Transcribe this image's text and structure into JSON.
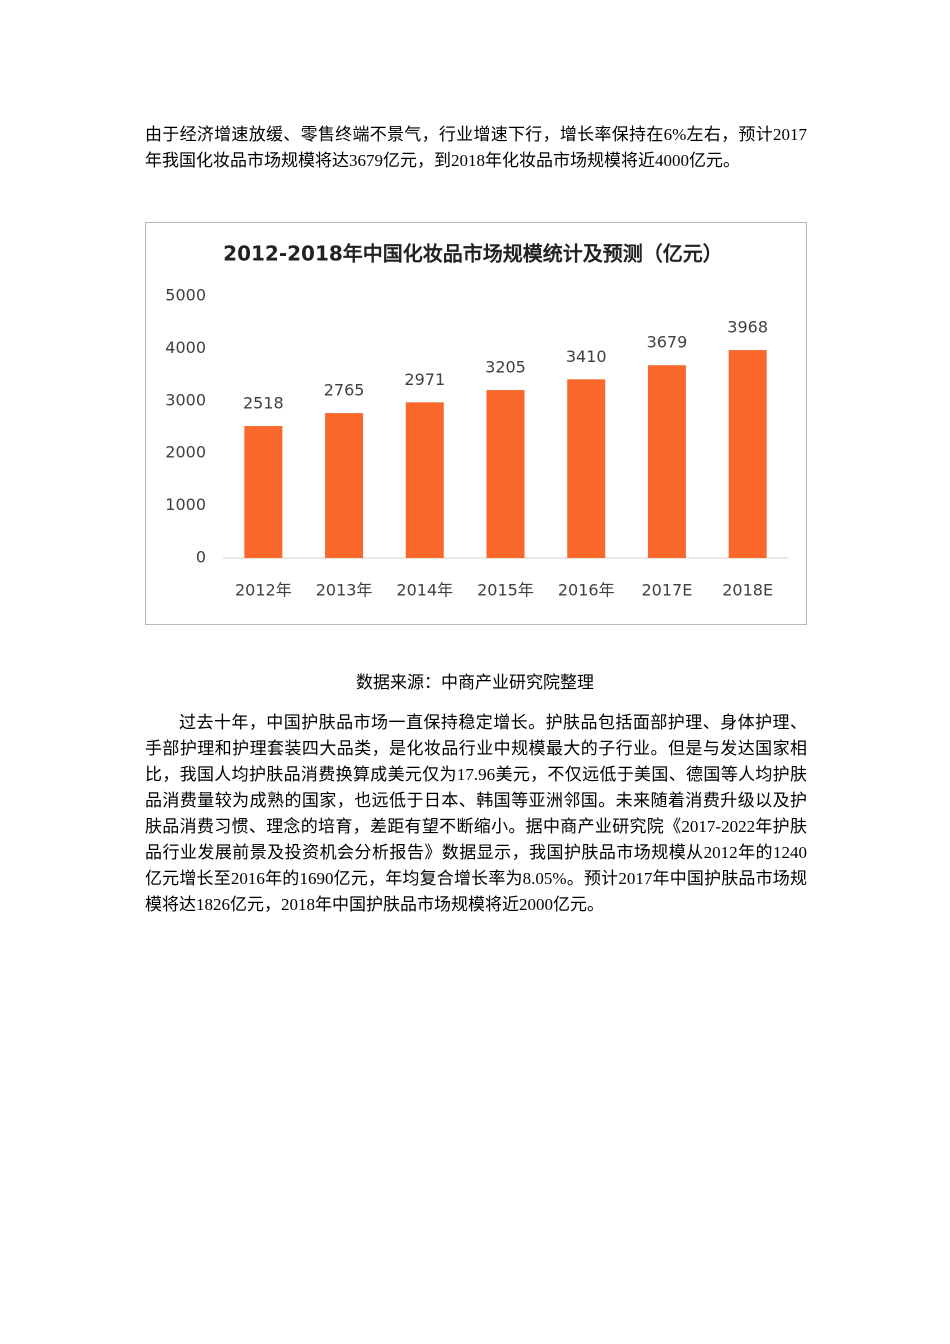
{
  "paragraphs": [
    "由于经济增速放缓、零售终端不景气，行业增速下行，增长率保持在6%左右，预计2017年我国化妆品市场规模将达3679亿元，到2018年化妆品市场规模将近4000亿元。",
    "过去十年，中国护肤品市场一直保持稳定增长。护肤品包括面部护理、身体护理、手部护理和护理套装四大品类，是化妆品行业中规模最大的子行业。但是与发达国家相比，我国人均护肤品消费换算成美元仅为17.96美元，不仅远低于美国、德国等人均护肤品消费量较为成熟的国家，也远低于日本、韩国等亚洲邻国。未来随着消费升级以及护肤品消费习惯、理念的培育，差距有望不断缩小。据中商产业研究院《2017-2022年护肤品行业发展前景及投资机会分析报告》数据显示，我国护肤品市场规模从2012年的1240亿元增长至2016年的1690亿元，年均复合增长率为8.05%。预计2017年中国护肤品市场规模将达1826亿元，2018年中国护肤品市场规模将近2000亿元。"
  ],
  "caption": "数据来源：中商产业研究院整理",
  "chart_data": {
    "type": "bar",
    "title": "2012-2018年中国化妆品市场规模统计及预测（亿元）",
    "categories": [
      "2012年",
      "2013年",
      "2014年",
      "2015年",
      "2016年",
      "2017E",
      "2018E"
    ],
    "values": [
      2518,
      2765,
      2971,
      3205,
      3410,
      3679,
      3968
    ],
    "color": "#f9672b",
    "ylim": [
      0,
      5000
    ],
    "yticks": [
      0,
      1000,
      2000,
      3000,
      4000,
      5000
    ],
    "grid": false
  }
}
